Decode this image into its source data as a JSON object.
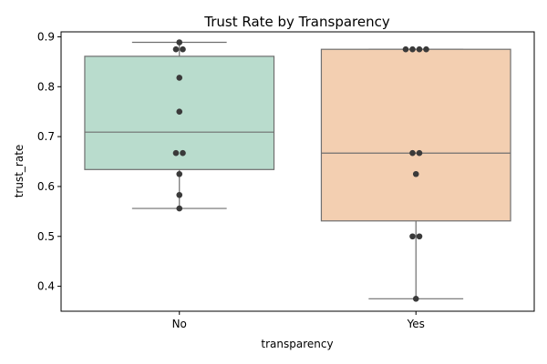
{
  "chart_data": {
    "type": "box",
    "title": "Trust Rate by Transparency",
    "xlabel": "transparency",
    "ylabel": "trust_rate",
    "categories": [
      "No",
      "Yes"
    ],
    "ylim": [
      0.35,
      0.91
    ],
    "yticks": [
      "0.4",
      "0.5",
      "0.6",
      "0.7",
      "0.8",
      "0.9"
    ],
    "grid": false,
    "box_colors": [
      "#b9dccd",
      "#f3cfb1"
    ],
    "edge_color": "#6f6f6f",
    "point_color": "#3a3a3a",
    "boxes": [
      {
        "category": "No",
        "whisker_low": 0.556,
        "q1": 0.634,
        "median": 0.709,
        "q3": 0.861,
        "whisker_high": 0.889
      },
      {
        "category": "Yes",
        "whisker_low": 0.375,
        "q1": 0.531,
        "median": 0.667,
        "q3": 0.875,
        "whisker_high": 0.875
      }
    ],
    "points": [
      {
        "category": "No",
        "values": [
          0.889,
          0.875,
          0.875,
          0.818,
          0.75,
          0.667,
          0.667,
          0.625,
          0.583,
          0.556
        ]
      },
      {
        "category": "Yes",
        "values": [
          0.875,
          0.875,
          0.875,
          0.875,
          0.667,
          0.667,
          0.625,
          0.5,
          0.5,
          0.375
        ]
      }
    ]
  }
}
